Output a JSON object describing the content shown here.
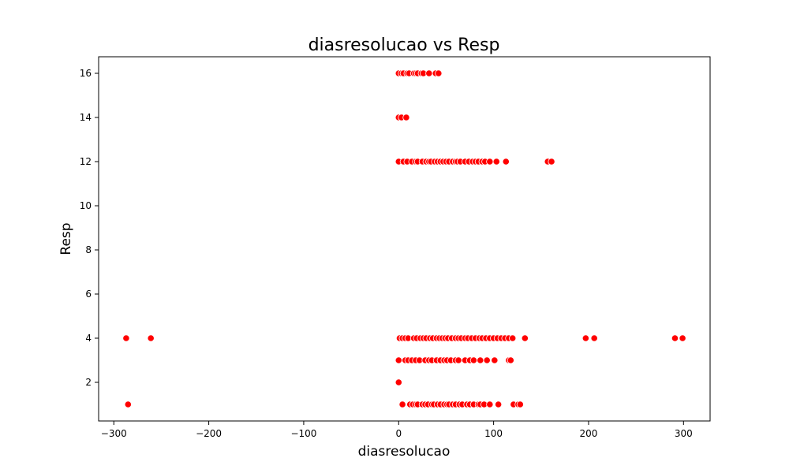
{
  "chart_data": {
    "type": "scatter",
    "title": "diasresolucao vs Resp",
    "xlabel": "diasresolucao",
    "ylabel": "Resp",
    "xlim": [
      -316,
      328
    ],
    "ylim": [
      0.25,
      16.75
    ],
    "xticks": [
      -300,
      -200,
      -100,
      0,
      100,
      200,
      300
    ],
    "xtick_labels": [
      "−300",
      "−200",
      "−100",
      "0",
      "100",
      "200",
      "300"
    ],
    "yticks": [
      2,
      4,
      6,
      8,
      10,
      12,
      14,
      16
    ],
    "ytick_labels": [
      "2",
      "4",
      "6",
      "8",
      "10",
      "12",
      "14",
      "16"
    ],
    "grid": false,
    "marker_color": "#ff0000",
    "points": [
      {
        "x": 0,
        "y": 16
      },
      {
        "x": 3,
        "y": 16
      },
      {
        "x": 5,
        "y": 16
      },
      {
        "x": 9,
        "y": 16
      },
      {
        "x": 11,
        "y": 16
      },
      {
        "x": 16,
        "y": 16
      },
      {
        "x": 18,
        "y": 16
      },
      {
        "x": 20,
        "y": 16
      },
      {
        "x": 24,
        "y": 16
      },
      {
        "x": 26,
        "y": 16
      },
      {
        "x": 32,
        "y": 16
      },
      {
        "x": 39,
        "y": 16
      },
      {
        "x": 42,
        "y": 16
      },
      {
        "x": 0,
        "y": 14
      },
      {
        "x": 3,
        "y": 14
      },
      {
        "x": 8,
        "y": 14
      },
      {
        "x": 0,
        "y": 12
      },
      {
        "x": 5,
        "y": 12
      },
      {
        "x": 9,
        "y": 12
      },
      {
        "x": 14,
        "y": 12
      },
      {
        "x": 18,
        "y": 12
      },
      {
        "x": 20,
        "y": 12
      },
      {
        "x": 25,
        "y": 12
      },
      {
        "x": 29,
        "y": 12
      },
      {
        "x": 32,
        "y": 12
      },
      {
        "x": 34,
        "y": 12
      },
      {
        "x": 38,
        "y": 12
      },
      {
        "x": 41,
        "y": 12
      },
      {
        "x": 44,
        "y": 12
      },
      {
        "x": 47,
        "y": 12
      },
      {
        "x": 50,
        "y": 12
      },
      {
        "x": 53,
        "y": 12
      },
      {
        "x": 57,
        "y": 12
      },
      {
        "x": 60,
        "y": 12
      },
      {
        "x": 62,
        "y": 12
      },
      {
        "x": 65,
        "y": 12
      },
      {
        "x": 70,
        "y": 12
      },
      {
        "x": 74,
        "y": 12
      },
      {
        "x": 78,
        "y": 12
      },
      {
        "x": 81,
        "y": 12
      },
      {
        "x": 84,
        "y": 12
      },
      {
        "x": 88,
        "y": 12
      },
      {
        "x": 91,
        "y": 12
      },
      {
        "x": 96,
        "y": 12
      },
      {
        "x": 103,
        "y": 12
      },
      {
        "x": 113,
        "y": 12
      },
      {
        "x": 157,
        "y": 12
      },
      {
        "x": 161,
        "y": 12
      },
      {
        "x": -287,
        "y": 4
      },
      {
        "x": -261,
        "y": 4
      },
      {
        "x": 1,
        "y": 4
      },
      {
        "x": 4,
        "y": 4
      },
      {
        "x": 7,
        "y": 4
      },
      {
        "x": 10,
        "y": 4
      },
      {
        "x": 16,
        "y": 4
      },
      {
        "x": 19,
        "y": 4
      },
      {
        "x": 23,
        "y": 4
      },
      {
        "x": 26,
        "y": 4
      },
      {
        "x": 29,
        "y": 4
      },
      {
        "x": 33,
        "y": 4
      },
      {
        "x": 36,
        "y": 4
      },
      {
        "x": 40,
        "y": 4
      },
      {
        "x": 43,
        "y": 4
      },
      {
        "x": 46,
        "y": 4
      },
      {
        "x": 49,
        "y": 4
      },
      {
        "x": 52,
        "y": 4
      },
      {
        "x": 56,
        "y": 4
      },
      {
        "x": 60,
        "y": 4
      },
      {
        "x": 63,
        "y": 4
      },
      {
        "x": 66,
        "y": 4
      },
      {
        "x": 70,
        "y": 4
      },
      {
        "x": 73,
        "y": 4
      },
      {
        "x": 77,
        "y": 4
      },
      {
        "x": 81,
        "y": 4
      },
      {
        "x": 85,
        "y": 4
      },
      {
        "x": 88,
        "y": 4
      },
      {
        "x": 92,
        "y": 4
      },
      {
        "x": 96,
        "y": 4
      },
      {
        "x": 100,
        "y": 4
      },
      {
        "x": 104,
        "y": 4
      },
      {
        "x": 108,
        "y": 4
      },
      {
        "x": 112,
        "y": 4
      },
      {
        "x": 116,
        "y": 4
      },
      {
        "x": 120,
        "y": 4
      },
      {
        "x": 133,
        "y": 4
      },
      {
        "x": 197,
        "y": 4
      },
      {
        "x": 206,
        "y": 4
      },
      {
        "x": 291,
        "y": 4
      },
      {
        "x": 299,
        "y": 4
      },
      {
        "x": 0,
        "y": 3
      },
      {
        "x": 7,
        "y": 3
      },
      {
        "x": 10,
        "y": 3
      },
      {
        "x": 14,
        "y": 3
      },
      {
        "x": 18,
        "y": 3
      },
      {
        "x": 22,
        "y": 3
      },
      {
        "x": 28,
        "y": 3
      },
      {
        "x": 32,
        "y": 3
      },
      {
        "x": 35,
        "y": 3
      },
      {
        "x": 40,
        "y": 3
      },
      {
        "x": 44,
        "y": 3
      },
      {
        "x": 48,
        "y": 3
      },
      {
        "x": 51,
        "y": 3
      },
      {
        "x": 55,
        "y": 3
      },
      {
        "x": 60,
        "y": 3
      },
      {
        "x": 63,
        "y": 3
      },
      {
        "x": 70,
        "y": 3
      },
      {
        "x": 75,
        "y": 3
      },
      {
        "x": 79,
        "y": 3
      },
      {
        "x": 86,
        "y": 3
      },
      {
        "x": 93,
        "y": 3
      },
      {
        "x": 101,
        "y": 3
      },
      {
        "x": 116,
        "y": 3
      },
      {
        "x": 118,
        "y": 3
      },
      {
        "x": 0,
        "y": 2
      },
      {
        "x": -285,
        "y": 1
      },
      {
        "x": 4,
        "y": 1
      },
      {
        "x": 12,
        "y": 1
      },
      {
        "x": 15,
        "y": 1
      },
      {
        "x": 18,
        "y": 1
      },
      {
        "x": 20,
        "y": 1
      },
      {
        "x": 25,
        "y": 1
      },
      {
        "x": 28,
        "y": 1
      },
      {
        "x": 31,
        "y": 1
      },
      {
        "x": 35,
        "y": 1
      },
      {
        "x": 37,
        "y": 1
      },
      {
        "x": 41,
        "y": 1
      },
      {
        "x": 44,
        "y": 1
      },
      {
        "x": 48,
        "y": 1
      },
      {
        "x": 51,
        "y": 1
      },
      {
        "x": 53,
        "y": 1
      },
      {
        "x": 57,
        "y": 1
      },
      {
        "x": 60,
        "y": 1
      },
      {
        "x": 64,
        "y": 1
      },
      {
        "x": 67,
        "y": 1
      },
      {
        "x": 72,
        "y": 1
      },
      {
        "x": 75,
        "y": 1
      },
      {
        "x": 79,
        "y": 1
      },
      {
        "x": 84,
        "y": 1
      },
      {
        "x": 86,
        "y": 1
      },
      {
        "x": 90,
        "y": 1
      },
      {
        "x": 96,
        "y": 1
      },
      {
        "x": 105,
        "y": 1
      },
      {
        "x": 121,
        "y": 1
      },
      {
        "x": 126,
        "y": 1
      },
      {
        "x": 128,
        "y": 1
      }
    ]
  }
}
